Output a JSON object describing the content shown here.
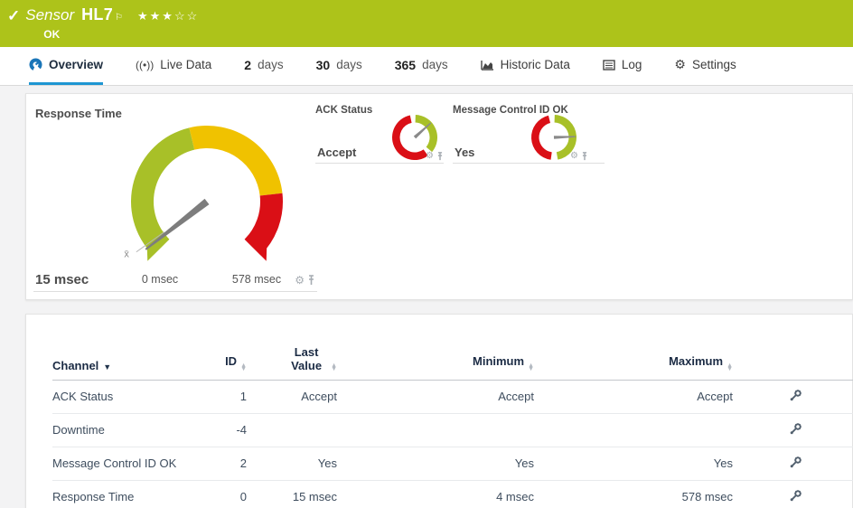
{
  "header": {
    "kind": "Sensor",
    "name": "HL7",
    "status": "OK",
    "stars": "★★★☆☆",
    "rating_filled": 3,
    "rating_total": 5
  },
  "tabs": {
    "items": [
      {
        "label": "Overview",
        "icon": "gauge-icon",
        "active": true
      },
      {
        "label": "Live Data",
        "icon": "live-data-icon"
      },
      {
        "num": "2",
        "label": "days"
      },
      {
        "num": "30",
        "label": "days"
      },
      {
        "num": "365",
        "label": "days"
      },
      {
        "label": "Historic Data",
        "icon": "area-chart-icon"
      },
      {
        "label": "Log",
        "icon": "log-list-icon"
      },
      {
        "label": "Settings",
        "icon": "gear-icon"
      }
    ]
  },
  "gauges": {
    "response_time": {
      "title": "Response Time",
      "value": "15 msec",
      "min_label": "0 msec",
      "max_label": "578 msec",
      "avg_marker": "x̄",
      "needle_fraction": 0.026,
      "segments": [
        {
          "color": "#a8c028",
          "from": 0.0,
          "to": 0.45
        },
        {
          "color": "#f0c200",
          "from": 0.45,
          "to": 0.81
        },
        {
          "color": "#da0f16",
          "from": 0.81,
          "to": 1.0
        }
      ]
    },
    "ack_status": {
      "title": "ACK Status",
      "value": "Accept",
      "needle_angle": 318,
      "arcs": [
        {
          "color": "#a8c028",
          "start": 272,
          "end": 400
        },
        {
          "color": "#da0f16",
          "start": 54,
          "end": 258
        }
      ]
    },
    "msg_control": {
      "title": "Message Control ID OK",
      "value": "Yes",
      "needle_angle": 358,
      "arcs": [
        {
          "color": "#a8c028",
          "start": 272,
          "end": 440
        },
        {
          "color": "#da0f16",
          "start": 98,
          "end": 256
        }
      ]
    }
  },
  "table": {
    "columns": {
      "channel": "Channel",
      "id": "ID",
      "last": "Last Value",
      "min": "Minimum",
      "max": "Maximum"
    },
    "rows": [
      {
        "channel": "ACK Status",
        "id": "1",
        "last": "Accept",
        "min": "Accept",
        "max": "Accept"
      },
      {
        "channel": "Downtime",
        "id": "-4",
        "last": "",
        "min": "",
        "max": ""
      },
      {
        "channel": "Message Control ID OK",
        "id": "2",
        "last": "Yes",
        "min": "Yes",
        "max": "Yes"
      },
      {
        "channel": "Response Time",
        "id": "0",
        "last": "15 msec",
        "min": "4 msec",
        "max": "578 msec"
      }
    ]
  },
  "colors": {
    "status_ok_green": "#adc31a",
    "accent_blue": "#1e96d2",
    "gauge_green": "#a8c028",
    "gauge_yellow": "#f0c200",
    "gauge_red": "#da0f16"
  }
}
